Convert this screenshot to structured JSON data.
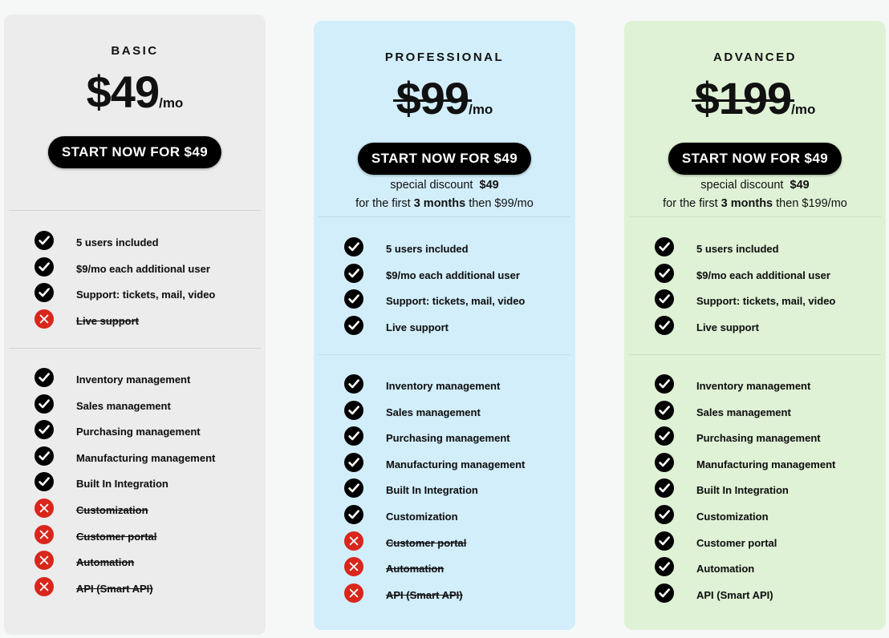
{
  "plans": [
    {
      "name": "BASIC",
      "price": "$49",
      "per": "/mo",
      "price_struck": false,
      "cta": "START NOW FOR $49",
      "discount": null,
      "group_a": [
        {
          "label": "5 users included",
          "included": true
        },
        {
          "label": "$9/mo each additional user",
          "included": true
        },
        {
          "label": "Support: tickets, mail, video",
          "included": true
        },
        {
          "label": "Live support",
          "included": false
        }
      ],
      "group_b": [
        {
          "label": "Inventory management",
          "included": true
        },
        {
          "label": "Sales management",
          "included": true
        },
        {
          "label": "Purchasing management",
          "included": true
        },
        {
          "label": "Manufacturing management",
          "included": true
        },
        {
          "label": "Built In Integration",
          "included": true
        },
        {
          "label": "Customization",
          "included": false
        },
        {
          "label": "Customer portal",
          "included": false
        },
        {
          "label": "Automation",
          "included": false
        },
        {
          "label": "API (Smart API)",
          "included": false
        }
      ]
    },
    {
      "name": "PROFESSIONAL",
      "price": "$99",
      "per": "/mo",
      "price_struck": true,
      "cta": "START NOW FOR $49",
      "discount": {
        "line1_text": "special discount",
        "line1_amount": "$49",
        "line2_prefix": "for the first",
        "line2_bold": "3 months",
        "line2_suffix": "then $99/mo"
      },
      "group_a": [
        {
          "label": "5 users included",
          "included": true
        },
        {
          "label": "$9/mo each additional user",
          "included": true
        },
        {
          "label": "Support: tickets, mail, video",
          "included": true
        },
        {
          "label": "Live support",
          "included": true
        }
      ],
      "group_b": [
        {
          "label": "Inventory management",
          "included": true
        },
        {
          "label": "Sales management",
          "included": true
        },
        {
          "label": "Purchasing management",
          "included": true
        },
        {
          "label": "Manufacturing management",
          "included": true
        },
        {
          "label": "Built In Integration",
          "included": true
        },
        {
          "label": "Customization",
          "included": true
        },
        {
          "label": "Customer portal",
          "included": false
        },
        {
          "label": "Automation",
          "included": false
        },
        {
          "label": "API (Smart API)",
          "included": false
        }
      ]
    },
    {
      "name": "ADVANCED",
      "price": "$199",
      "per": "/mo",
      "price_struck": true,
      "cta": "START NOW FOR $49",
      "discount": {
        "line1_text": "special discount",
        "line1_amount": "$49",
        "line2_prefix": "for the first",
        "line2_bold": "3 months",
        "line2_suffix": "then $199/mo"
      },
      "group_a": [
        {
          "label": "5 users included",
          "included": true
        },
        {
          "label": "$9/mo each additional user",
          "included": true
        },
        {
          "label": "Support: tickets, mail, video",
          "included": true
        },
        {
          "label": "Live support",
          "included": true
        }
      ],
      "group_b": [
        {
          "label": "Inventory management",
          "included": true
        },
        {
          "label": "Sales management",
          "included": true
        },
        {
          "label": "Purchasing management",
          "included": true
        },
        {
          "label": "Manufacturing management",
          "included": true
        },
        {
          "label": "Built In Integration",
          "included": true
        },
        {
          "label": "Customization",
          "included": true
        },
        {
          "label": "Customer portal",
          "included": true
        },
        {
          "label": "Automation",
          "included": true
        },
        {
          "label": "API (Smart API)",
          "included": true
        }
      ]
    }
  ],
  "icons": {
    "included": "check-circle-icon",
    "excluded": "x-circle-icon"
  },
  "colors": {
    "basic_bg": "#ececec",
    "professional_bg": "#d2eefb",
    "advanced_bg": "#dff2d6",
    "cta_bg": "#000000",
    "cta_text": "#ffffff",
    "check": "#000000",
    "cross": "#d9261c"
  }
}
